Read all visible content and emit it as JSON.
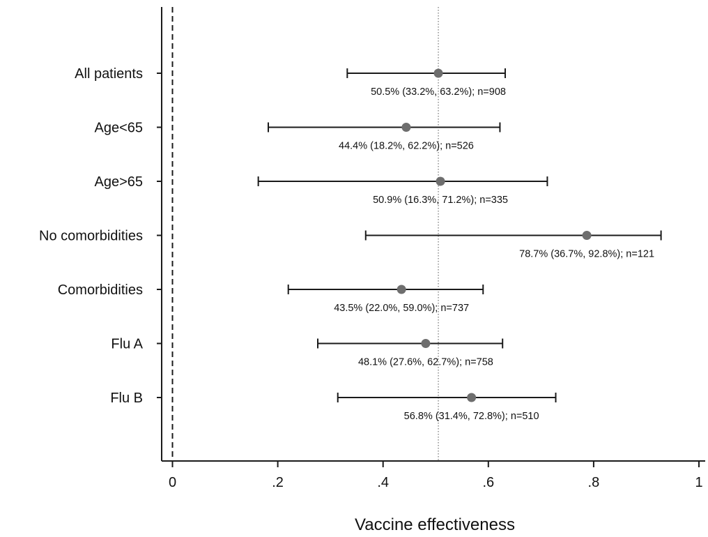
{
  "chart_data": {
    "type": "scatter",
    "subtype": "forest plot with confidence intervals",
    "title": "",
    "xlabel": "Vaccine effectiveness",
    "ylabel": "",
    "xlim": [
      -0.02,
      1.0
    ],
    "x_ticks": [
      0,
      0.2,
      0.4,
      0.6,
      0.8,
      1.0
    ],
    "x_tick_labels": [
      "0",
      ".2",
      ".4",
      ".6",
      ".8",
      "1"
    ],
    "reference_lines": [
      {
        "x": 0,
        "style": "dashed"
      },
      {
        "x": 0.505,
        "style": "dotted"
      }
    ],
    "grid": false,
    "legend": "none",
    "marker_color": "#6e6e6e",
    "line_color": "#1a1a1a",
    "categories": [
      "All patients",
      "Age<65",
      "Age>65",
      "No comorbidities",
      "Comorbidities",
      "Flu A",
      "Flu B"
    ],
    "estimates": [
      0.505,
      0.444,
      0.509,
      0.787,
      0.435,
      0.481,
      0.568
    ],
    "ci_lower": [
      0.332,
      0.182,
      0.163,
      0.367,
      0.22,
      0.276,
      0.314
    ],
    "ci_upper": [
      0.632,
      0.622,
      0.712,
      0.928,
      0.59,
      0.627,
      0.728
    ],
    "n": [
      908,
      526,
      335,
      121,
      737,
      758,
      510
    ],
    "labels": [
      "50.5% (33.2%, 63.2%); n=908",
      "44.4% (18.2%, 62.2%); n=526",
      "50.9% (16.3%, 71.2%); n=335",
      "78.7% (36.7%, 92.8%); n=121",
      "43.5% (22.0%, 59.0%); n=737",
      "48.1% (27.6%, 62.7%); n=758",
      "56.8% (31.4%, 72.8%); n=510"
    ]
  }
}
